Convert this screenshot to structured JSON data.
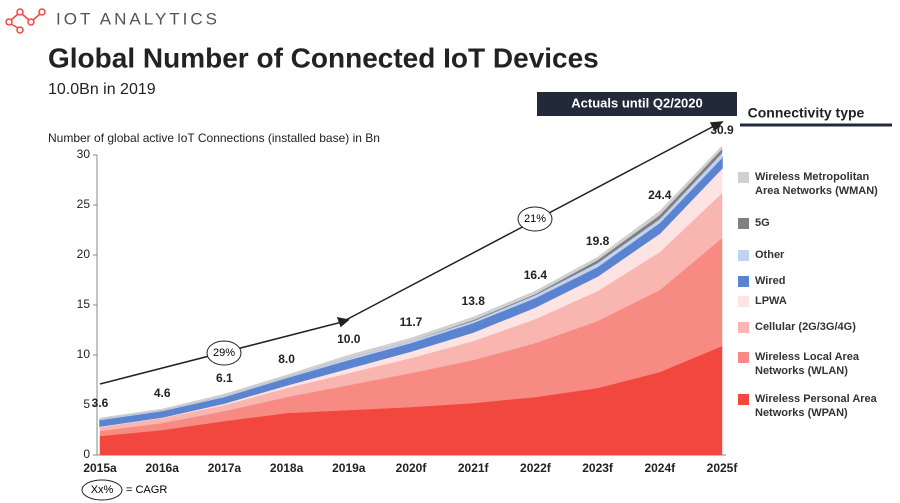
{
  "logo": "IOT ANALYTICS",
  "chart_data": {
    "type": "stacked-area",
    "title": "Global Number of Connected IoT Devices",
    "subtitle": "10.0Bn in 2019",
    "y_label": "Number of global active IoT Connections (installed base) in Bn",
    "banner": "Actuals until Q2/2020",
    "legend_title": "Connectivity type",
    "categories": [
      "2015a",
      "2016a",
      "2017a",
      "2018a",
      "2019a",
      "2020f",
      "2021f",
      "2022f",
      "2023f",
      "2024f",
      "2025f"
    ],
    "totals": [
      3.6,
      4.6,
      6.1,
      8.0,
      10.0,
      11.7,
      13.8,
      16.4,
      19.8,
      24.4,
      30.9
    ],
    "total_labels": [
      "3.6",
      "4.6",
      "6.1",
      "8.0",
      "10.0",
      "11.7",
      "13.8",
      "16.4",
      "19.8",
      "24.4",
      "30.9"
    ],
    "series": [
      {
        "name": "Wireless Personal Area Networks (WPAN)",
        "color": "#f2473f",
        "values": [
          1.9,
          2.5,
          3.4,
          4.2,
          4.5,
          4.8,
          5.2,
          5.8,
          6.7,
          8.3,
          10.9
        ]
      },
      {
        "name": "Wireless Local Area Networks (WLAN)",
        "color": "#f78a82",
        "values": [
          0.5,
          0.7,
          1.0,
          1.6,
          2.5,
          3.4,
          4.3,
          5.4,
          6.7,
          8.2,
          10.8
        ]
      },
      {
        "name": "Cellular (2G/3G/4G)",
        "color": "#f9b5b0",
        "values": [
          0.4,
          0.5,
          0.6,
          0.9,
          1.2,
          1.5,
          1.9,
          2.4,
          3.0,
          3.8,
          4.5
        ]
      },
      {
        "name": "LPWA",
        "color": "#fde3e2",
        "values": [
          0.1,
          0.1,
          0.2,
          0.3,
          0.5,
          0.7,
          0.9,
          1.2,
          1.5,
          1.9,
          2.5
        ]
      },
      {
        "name": "Wired",
        "color": "#5b84d0",
        "values": [
          0.6,
          0.6,
          0.6,
          0.7,
          0.8,
          0.8,
          0.9,
          0.9,
          0.9,
          1.0,
          1.0
        ]
      },
      {
        "name": "Other",
        "color": "#c3d3ef",
        "values": [
          0.1,
          0.1,
          0.1,
          0.1,
          0.2,
          0.2,
          0.2,
          0.3,
          0.4,
          0.4,
          0.5
        ]
      },
      {
        "name": "5G",
        "color": "#7f7f85",
        "values": [
          0,
          0,
          0,
          0,
          0,
          0,
          0.1,
          0.1,
          0.3,
          0.4,
          0.4
        ]
      },
      {
        "name": "Wireless Metropolitan Area Networks (WMAN)",
        "color": "#d0d0d0",
        "values": [
          0.1,
          0.1,
          0.2,
          0.2,
          0.3,
          0.3,
          0.3,
          0.3,
          0.3,
          0.4,
          0.3
        ]
      }
    ],
    "cagr": [
      "29%",
      "21%"
    ],
    "cagr_key": [
      "Xx%",
      "= CAGR"
    ],
    "ylim": [
      0,
      30
    ],
    "yticks": [
      0,
      5,
      10,
      15,
      20,
      25,
      30
    ]
  }
}
